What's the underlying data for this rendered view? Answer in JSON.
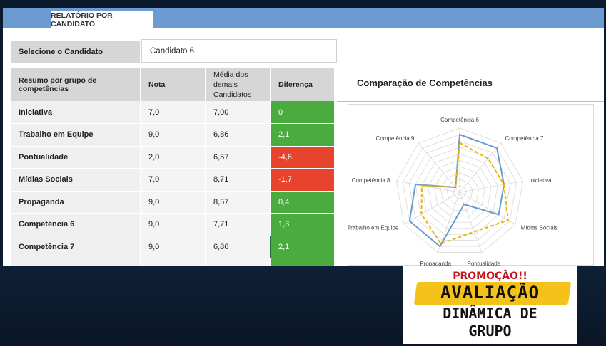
{
  "tab": {
    "label": "RELATÓRIO POR CANDIDATO"
  },
  "selector": {
    "label": "Selecione o Candidato",
    "value": "Candidato 6"
  },
  "table": {
    "headers": {
      "name": "Resumo por grupo de competências",
      "nota": "Nota",
      "media": "Média dos demais Candidatos",
      "diff": "Diferença"
    },
    "rows": [
      {
        "name": "Iniciativa",
        "nota": "7,0",
        "media": "7,00",
        "diff": "0"
      },
      {
        "name": "Trabalho em Equipe",
        "nota": "9,0",
        "media": "6,86",
        "diff": "2,1"
      },
      {
        "name": "Pontualidade",
        "nota": "2,0",
        "media": "6,57",
        "diff": "-4,6"
      },
      {
        "name": "Mídias Sociais",
        "nota": "7,0",
        "media": "8,71",
        "diff": "-1,7"
      },
      {
        "name": "Propaganda",
        "nota": "9,0",
        "media": "8,57",
        "diff": "0,4"
      },
      {
        "name": "Competência 6",
        "nota": "9,0",
        "media": "7,71",
        "diff": "1,3"
      },
      {
        "name": "Competência 7",
        "nota": "9,0",
        "media": "6,86",
        "diff": "2,1"
      }
    ]
  },
  "chart_title": "Comparação de Competências",
  "chart_data": {
    "type": "radar",
    "title": "Comparação de Competências",
    "categories": [
      "Competência 6",
      "Competência 7",
      "Iniciativa",
      "Mídias Sociais",
      "Pontualidade",
      "Propaganda",
      "Trabalho em Equipe",
      "Competência 8",
      "Competência 9"
    ],
    "rmax": 10,
    "series": [
      {
        "values": [
          9,
          9,
          7,
          7,
          2,
          9,
          9,
          7,
          1
        ],
        "color": "#6b9bc9",
        "style": "solid"
      },
      {
        "values": [
          7.71,
          6.86,
          7,
          8.71,
          6.57,
          8.57,
          6.86,
          6,
          1
        ],
        "color": "#f0b400",
        "style": "dashed"
      }
    ],
    "grid_rings": 10
  },
  "promo": {
    "line1": "PROMOÇÃO!!",
    "line2": "AVALIAÇÃO",
    "line3": "DINÂMICA DE",
    "line4": "GRUPO"
  },
  "colors": {
    "positive": "#4aab3f",
    "negative": "#e8432d",
    "header_bar": "#6b9bd1"
  }
}
